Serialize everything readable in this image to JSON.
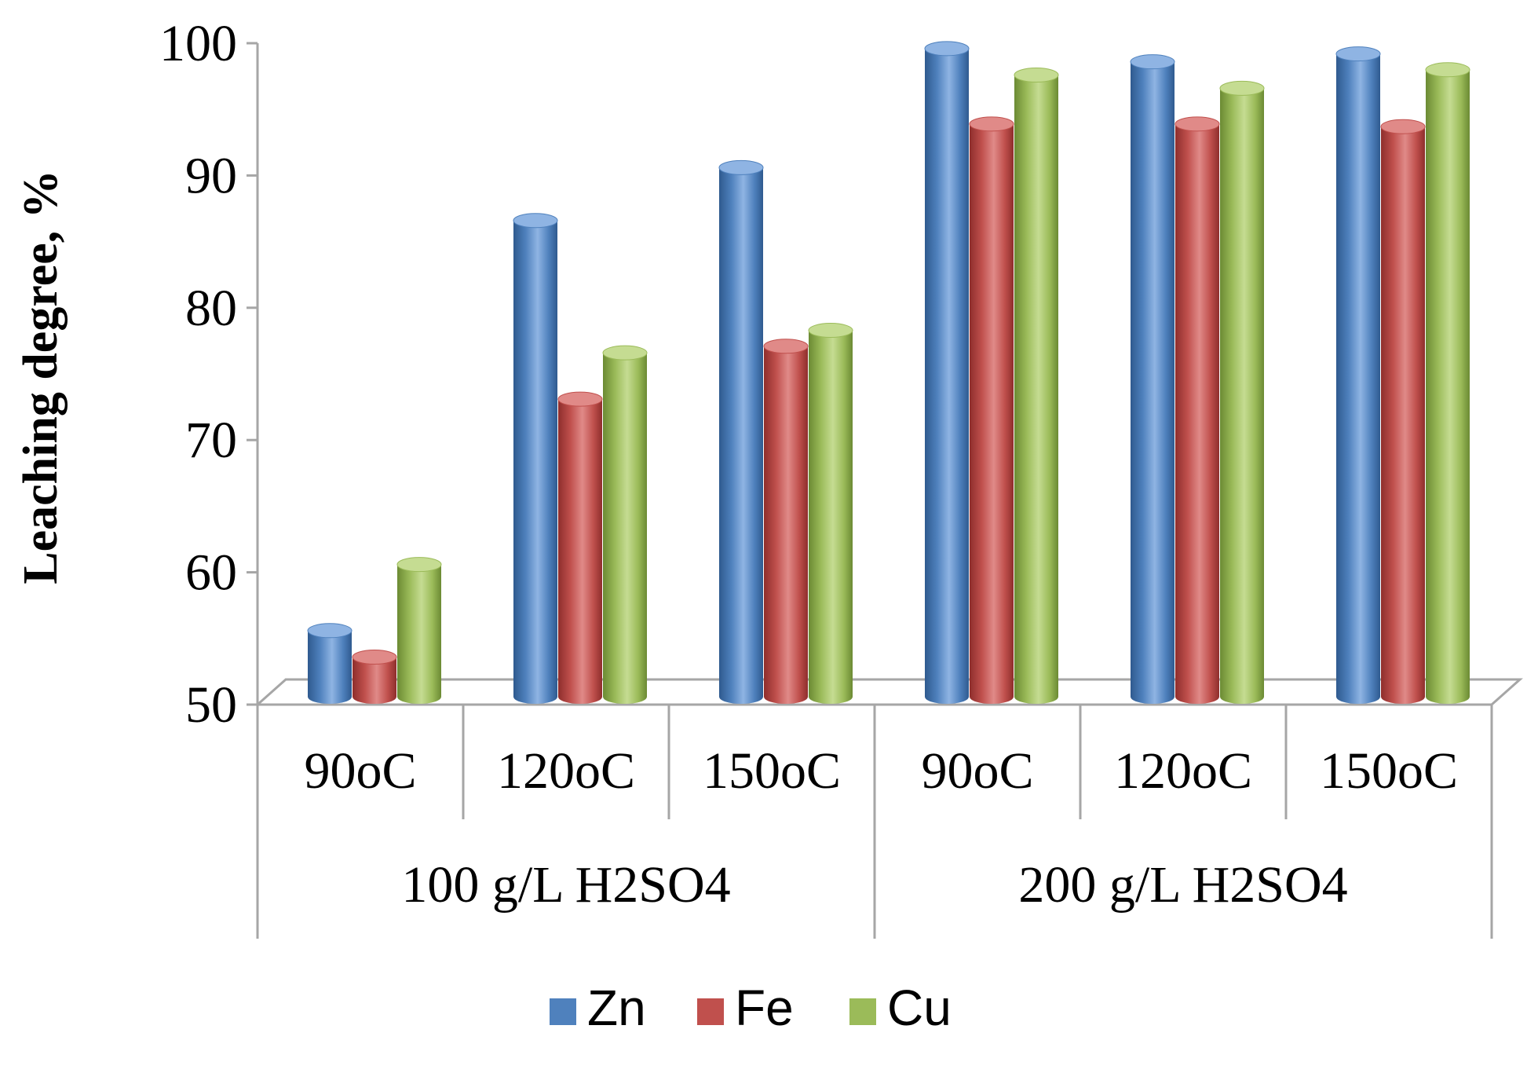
{
  "chart_data": {
    "type": "bar",
    "style": "3d-cylinder",
    "title": "",
    "ylabel": "Leaching degree, %",
    "xlabel": "",
    "ylim": [
      50,
      100
    ],
    "yticks": [
      "50",
      "60",
      "70",
      "80",
      "90",
      "100"
    ],
    "grid": false,
    "legend_position": "bottom",
    "categories": [
      "90oC",
      "120oC",
      "150oC",
      "90oC",
      "120oC",
      "150oC"
    ],
    "groups": [
      {
        "label": "100 g/L H2SO4",
        "span": 3
      },
      {
        "label": "200 g/L H2SO4",
        "span": 3
      }
    ],
    "series": [
      {
        "name": "Zn",
        "color": "#4f81bd",
        "dark": "#2f5a8f",
        "light": "#8fb4e3",
        "values": [
          55,
          86,
          90,
          99,
          98,
          98.6
        ]
      },
      {
        "name": "Fe",
        "color": "#c0504d",
        "dark": "#8e2e2c",
        "light": "#e08a88",
        "values": [
          53,
          72.5,
          76.5,
          93.3,
          93.3,
          93.1
        ]
      },
      {
        "name": "Cu",
        "color": "#9bbb59",
        "dark": "#6b8a33",
        "light": "#c5dc92",
        "values": [
          60,
          76,
          77.7,
          97,
          96,
          97.4
        ]
      }
    ]
  }
}
